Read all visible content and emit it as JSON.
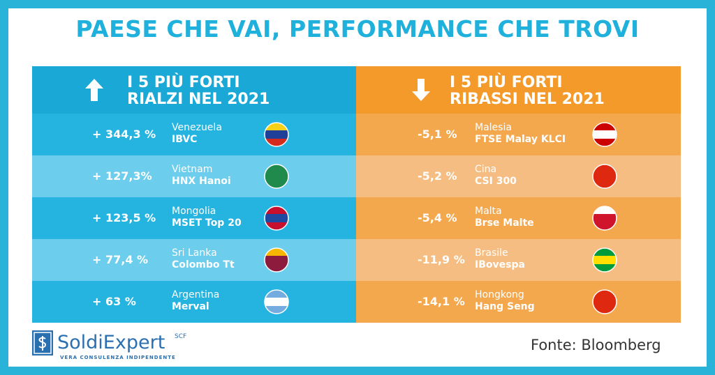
{
  "header": {
    "title": "PAESE CHE VAI, PERFORMANCE CHE TROVI"
  },
  "panels": [
    {
      "heading": [
        "I 5 PIÙ FORTI",
        "RIALZI NEL 2021"
      ],
      "rows": [
        {
          "value": "+ 344,3 %",
          "country": "Venezuela",
          "index": "IBVC"
        },
        {
          "value": "+ 127,3%",
          "country": "Vietnam",
          "index": "HNX Hanoi"
        },
        {
          "value": "+ 123,5 %",
          "country": "Mongolia",
          "index": "MSET Top 20"
        },
        {
          "value": "+ 77,4 %",
          "country": "Sri Lanka",
          "index": "Colombo Tt"
        },
        {
          "value": "+ 63 %",
          "country": "Argentina",
          "index": "Merval"
        }
      ]
    },
    {
      "heading": [
        "I 5 PIÙ FORTI",
        "RIBASSI NEL 2021"
      ],
      "rows": [
        {
          "value": "-5,1 %",
          "country": "Malesia",
          "index": "FTSE Malay KLCI"
        },
        {
          "value": "-5,2 %",
          "country": "Cina",
          "index": "CSI 300"
        },
        {
          "value": "-5,4 %",
          "country": "Malta",
          "index": "Brse Malte"
        },
        {
          "value": "-11,9 %",
          "country": "Brasile",
          "index": "IBovespa"
        },
        {
          "value": "-14,1 %",
          "country": "Hongkong",
          "index": "Hang Seng"
        }
      ]
    }
  ],
  "footer": {
    "brand": "SoldiExpert",
    "brand_suffix": "SCF",
    "tagline": "VERA CONSULENZA INDIPENDENTE",
    "source": "Fonte: Bloomberg"
  }
}
